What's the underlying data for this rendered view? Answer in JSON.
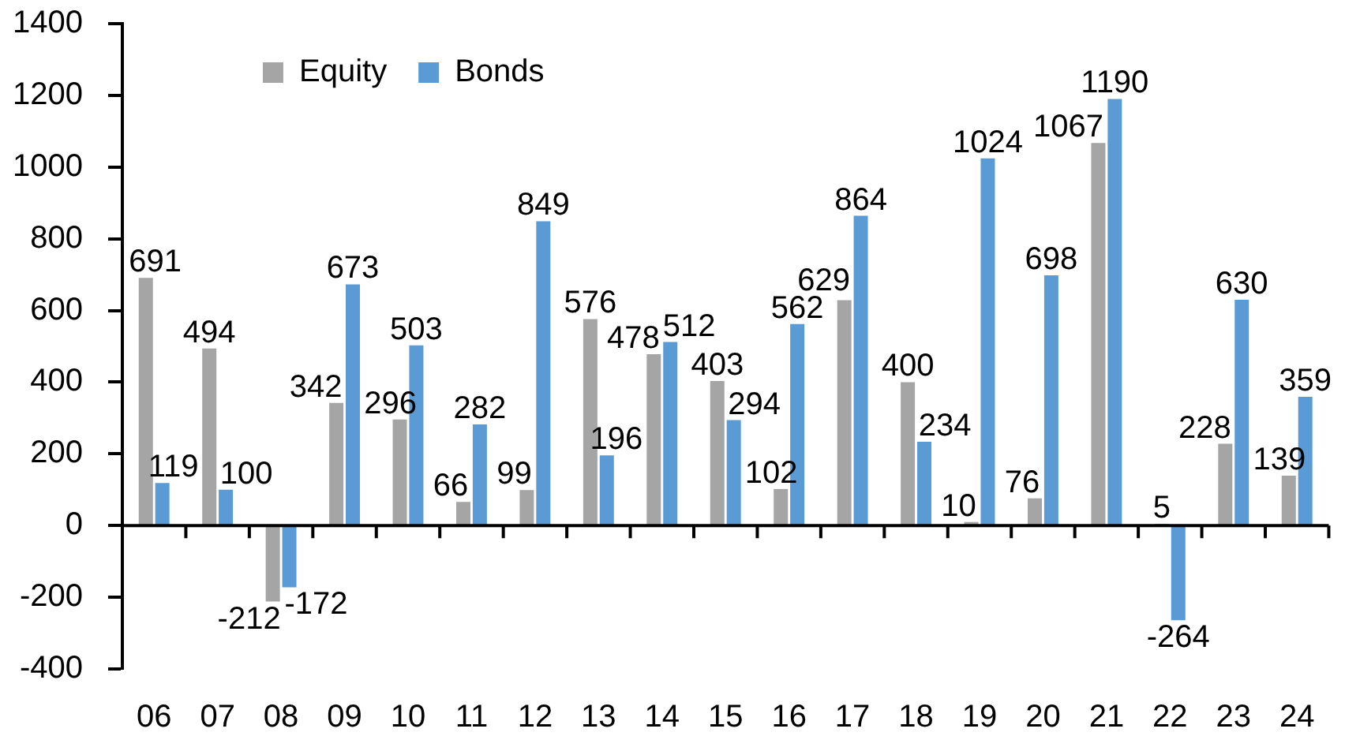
{
  "chart_data": {
    "type": "bar",
    "categories": [
      "06",
      "07",
      "08",
      "09",
      "10",
      "11",
      "12",
      "13",
      "14",
      "15",
      "16",
      "17",
      "18",
      "19",
      "20",
      "21",
      "22",
      "23",
      "24"
    ],
    "series": [
      {
        "name": "Equity",
        "color": "#a5a5a5",
        "values": [
          691,
          494,
          -212,
          342,
          296,
          66,
          99,
          576,
          478,
          403,
          102,
          629,
          400,
          10,
          76,
          1067,
          5,
          228,
          139
        ]
      },
      {
        "name": "Bonds",
        "color": "#5b9bd5",
        "values": [
          119,
          100,
          -172,
          673,
          503,
          282,
          849,
          196,
          512,
          294,
          562,
          864,
          234,
          1024,
          698,
          1190,
          -264,
          630,
          359
        ]
      }
    ],
    "ylim": [
      -400,
      1400
    ],
    "yticks": [
      -400,
      -200,
      0,
      200,
      400,
      600,
      800,
      1000,
      1200,
      1400
    ],
    "legend": "top left",
    "data_labels": true
  }
}
